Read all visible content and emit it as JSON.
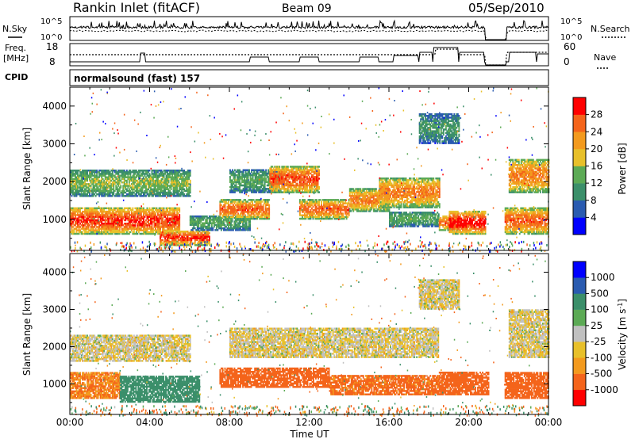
{
  "header": {
    "station": "Rankin Inlet (fitACF)",
    "beam": "Beam 09",
    "date": "05/Sep/2010"
  },
  "status_panels": {
    "nsky_label": "N.Sky",
    "nsky_ticks": [
      "10^5",
      "10^0"
    ],
    "nsearch_label": "N.Search",
    "nsearch_ticks": [
      "10^5",
      "10^0"
    ],
    "freq_label_1": "Freq.",
    "freq_label_2": "[MHz]",
    "freq_ticks": [
      "18",
      "8"
    ],
    "nave_label": "Nave",
    "nave_ticks": [
      "60",
      "0"
    ],
    "cpid_label": "CPID",
    "cpid_value": "normalsound (fast) 157"
  },
  "colors": {
    "power_scale": [
      "#0000ff",
      "#2a5bb0",
      "#3b8f6a",
      "#5caa55",
      "#e8c02a",
      "#f39a1e",
      "#f4641b",
      "#ff0000"
    ],
    "velocity_scale": [
      "#ff0000",
      "#f4641b",
      "#f39a1e",
      "#e8c02a",
      "#c0c0c0",
      "#5caa55",
      "#3b8f6a",
      "#2a5bb0",
      "#0000ff"
    ]
  },
  "chart_data": [
    {
      "type": "heatmap",
      "name": "power",
      "ylabel": "Slant Range [km]",
      "xlabel": "Time UT",
      "y_ticks": [
        "4000",
        "3000",
        "2000",
        "1000"
      ],
      "ylim": [
        180,
        4500
      ],
      "x_ticks": [
        "00:00",
        "04:00",
        "08:00",
        "12:00",
        "16:00",
        "20:00",
        "00:00"
      ],
      "xlim_hours": [
        0,
        24
      ],
      "colorbar_label": "Power [dB]",
      "colorbar_ticks": [
        "28",
        "24",
        "20",
        "16",
        "12",
        "8",
        "4"
      ],
      "colorbar_range": [
        0,
        32
      ],
      "bands": [
        {
          "t0": 0.0,
          "t1": 5.5,
          "r0": 600,
          "r1": 1300,
          "v": 26
        },
        {
          "t0": 0.0,
          "t1": 6.0,
          "r0": 1600,
          "r1": 2300,
          "v": 14
        },
        {
          "t0": 4.5,
          "t1": 7.0,
          "r0": 300,
          "r1": 700,
          "v": 26
        },
        {
          "t0": 6.0,
          "t1": 9.0,
          "r0": 700,
          "r1": 1100,
          "v": 12
        },
        {
          "t0": 7.5,
          "t1": 10.0,
          "r0": 1000,
          "r1": 1500,
          "v": 24
        },
        {
          "t0": 8.0,
          "t1": 10.5,
          "r0": 1700,
          "r1": 2300,
          "v": 12
        },
        {
          "t0": 10.0,
          "t1": 12.5,
          "r0": 1700,
          "r1": 2400,
          "v": 25
        },
        {
          "t0": 11.5,
          "t1": 14.0,
          "r0": 1000,
          "r1": 1500,
          "v": 24
        },
        {
          "t0": 14.0,
          "t1": 16.0,
          "r0": 1200,
          "r1": 1800,
          "v": 22
        },
        {
          "t0": 15.5,
          "t1": 18.5,
          "r0": 1300,
          "r1": 2100,
          "v": 22
        },
        {
          "t0": 16.0,
          "t1": 18.5,
          "r0": 800,
          "r1": 1200,
          "v": 12
        },
        {
          "t0": 18.5,
          "t1": 19.5,
          "r0": 700,
          "r1": 1100,
          "v": 24
        },
        {
          "t0": 19.0,
          "t1": 20.8,
          "r0": 600,
          "r1": 1200,
          "v": 28
        },
        {
          "t0": 21.8,
          "t1": 24.0,
          "r0": 600,
          "r1": 1300,
          "v": 24
        },
        {
          "t0": 22.0,
          "t1": 24.0,
          "r0": 1700,
          "r1": 2600,
          "v": 22
        },
        {
          "t0": 17.5,
          "t1": 19.5,
          "r0": 3000,
          "r1": 3800,
          "v": 10
        }
      ]
    },
    {
      "type": "heatmap",
      "name": "velocity",
      "ylabel": "Slant Range [km]",
      "xlabel": "Time UT",
      "y_ticks": [
        "4000",
        "3000",
        "2000",
        "1000"
      ],
      "ylim": [
        180,
        4500
      ],
      "x_ticks": [
        "00:00",
        "04:00",
        "08:00",
        "12:00",
        "16:00",
        "20:00",
        "00:00"
      ],
      "xlim_hours": [
        0,
        24
      ],
      "colorbar_label": "Velocity [m s^-1]",
      "colorbar_ticks": [
        "1000",
        "500",
        "100",
        "25",
        "-25",
        "-100",
        "-500",
        "-1000"
      ],
      "bands": [
        {
          "t0": 0.0,
          "t1": 2.5,
          "r0": 600,
          "r1": 1300,
          "v": -100
        },
        {
          "t0": 2.5,
          "t1": 6.5,
          "r0": 500,
          "r1": 1200,
          "v": 300
        },
        {
          "t0": 0.0,
          "t1": 6.0,
          "r0": 1600,
          "r1": 2300,
          "v": 0
        },
        {
          "t0": 7.5,
          "t1": 13.0,
          "r0": 900,
          "r1": 1400,
          "v": -150
        },
        {
          "t0": 8.0,
          "t1": 18.5,
          "r0": 1700,
          "r1": 2500,
          "v": 0
        },
        {
          "t0": 13.0,
          "t1": 18.5,
          "r0": 700,
          "r1": 1200,
          "v": -120
        },
        {
          "t0": 18.5,
          "t1": 21.0,
          "r0": 700,
          "r1": 1300,
          "v": -200
        },
        {
          "t0": 21.8,
          "t1": 24.0,
          "r0": 600,
          "r1": 1300,
          "v": -200
        },
        {
          "t0": 22.0,
          "t1": 24.0,
          "r0": 1700,
          "r1": 3000,
          "v": 0
        },
        {
          "t0": 17.5,
          "t1": 19.5,
          "r0": 3000,
          "r1": 3800,
          "v": 0
        }
      ]
    }
  ]
}
